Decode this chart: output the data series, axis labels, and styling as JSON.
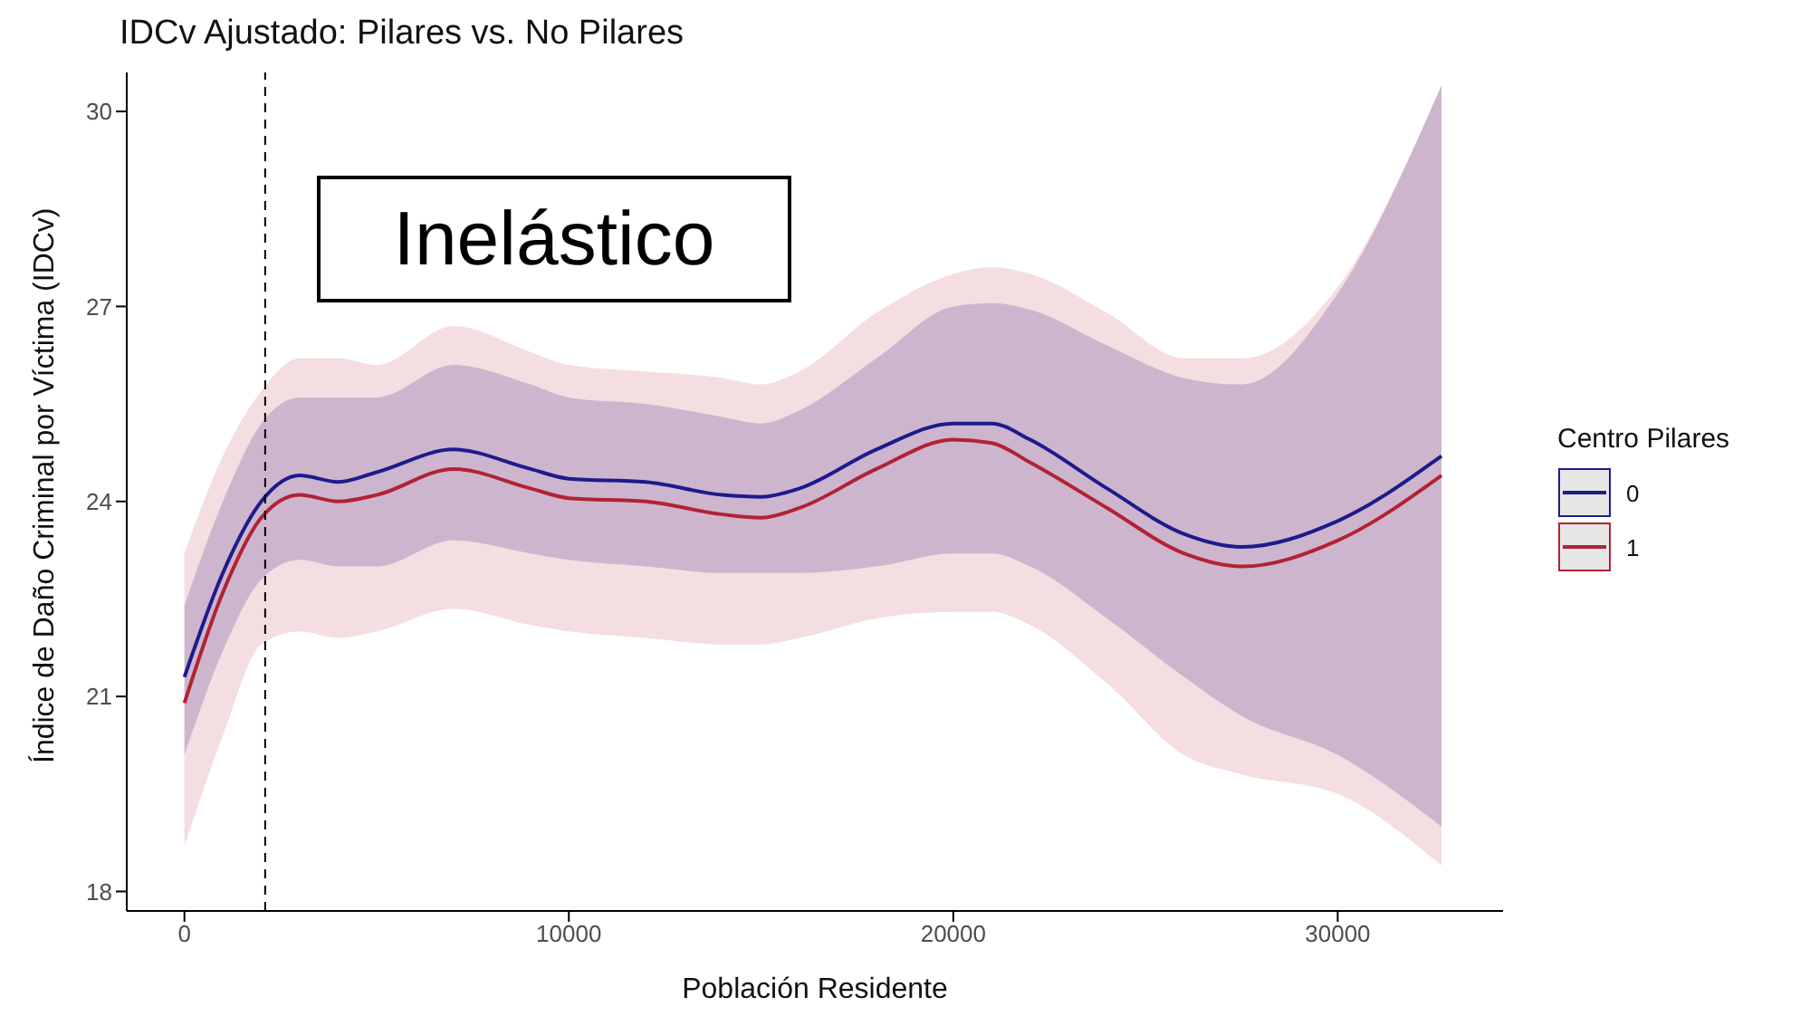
{
  "chart_data": {
    "type": "line",
    "title": "IDCv Ajustado: Pilares vs. No Pilares",
    "xlabel": "Población Residente",
    "ylabel": "Índice de Daño Criminal por Víctima (IDCv)",
    "legend_title": "Centro Pilares",
    "annotations": [
      "Inelástico"
    ],
    "x": [
      0,
      1000,
      2000,
      3000,
      4000,
      5000,
      7000,
      9000,
      10000,
      12000,
      14000,
      15000,
      16000,
      18000,
      20000,
      21000,
      22000,
      24000,
      26000,
      27500,
      30000,
      32700
    ],
    "series": [
      {
        "name": "0",
        "color": "#1f1a8c",
        "values": [
          21.3,
          22.9,
          24.0,
          24.4,
          24.3,
          24.45,
          24.8,
          24.5,
          24.35,
          24.3,
          24.1,
          24.07,
          24.2,
          24.8,
          25.2,
          25.2,
          24.95,
          24.2,
          23.5,
          23.3,
          23.7,
          24.7
        ],
        "lower": [
          20.1,
          21.7,
          22.8,
          23.1,
          23.0,
          23.0,
          23.4,
          23.2,
          23.1,
          23.0,
          22.9,
          22.9,
          22.9,
          23.0,
          23.2,
          23.2,
          23.0,
          22.2,
          21.3,
          20.7,
          20.1,
          19.0
        ],
        "upper": [
          22.4,
          24.0,
          25.2,
          25.6,
          25.6,
          25.6,
          26.1,
          25.8,
          25.6,
          25.5,
          25.3,
          25.2,
          25.4,
          26.2,
          27.0,
          27.05,
          26.95,
          26.4,
          25.9,
          25.8,
          27.2,
          30.4
        ]
      },
      {
        "name": "1",
        "color": "#b22234",
        "values": [
          20.9,
          22.6,
          23.75,
          24.1,
          24.0,
          24.1,
          24.5,
          24.2,
          24.05,
          24.0,
          23.8,
          23.75,
          23.9,
          24.5,
          24.95,
          24.9,
          24.6,
          23.9,
          23.2,
          23.0,
          23.4,
          24.4
        ],
        "lower": [
          18.7,
          20.4,
          21.8,
          22.0,
          21.9,
          22.0,
          22.35,
          22.1,
          22.0,
          21.9,
          21.8,
          21.8,
          21.9,
          22.2,
          22.3,
          22.3,
          22.1,
          21.2,
          20.1,
          19.8,
          19.5,
          18.4
        ],
        "upper": [
          23.2,
          24.7,
          25.7,
          26.2,
          26.2,
          26.1,
          26.7,
          26.3,
          26.1,
          26.0,
          25.9,
          25.8,
          26.0,
          26.9,
          27.5,
          27.6,
          27.5,
          26.9,
          26.2,
          26.2,
          27.3,
          30.4
        ]
      }
    ],
    "ref_lines": [
      {
        "axis": "x",
        "value": 2100,
        "color": "#000000",
        "line_style": "dashed"
      }
    ],
    "xlim": [
      -1500,
      34300
    ],
    "xticks": [
      0,
      10000,
      20000,
      30000
    ],
    "ylim": [
      17.7,
      30.6
    ],
    "yticks": [
      18,
      21,
      24,
      27,
      30
    ],
    "grid": false,
    "legend": "right",
    "marker": "none",
    "line_style": "solid"
  }
}
